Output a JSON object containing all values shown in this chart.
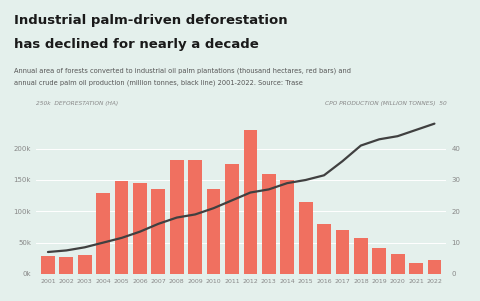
{
  "title_line1": "Industrial palm-driven deforestation",
  "title_line2": "has declined for nearly a decade",
  "subtitle_line1": "Annual area of forests converted to industrial oil palm plantations (thousand hectares, red bars) and",
  "subtitle_line2": "annual crude palm oil production (million tonnes, black line) 2001-2022. Source: Trase",
  "years": [
    "2001",
    "2002",
    "2003",
    "2004",
    "2005",
    "2006",
    "2007",
    "2008",
    "2009",
    "2010",
    "2011",
    "2012",
    "2013",
    "2014",
    "2015",
    "2016",
    "2017",
    "2018",
    "2019",
    "2020",
    "2021",
    "2022"
  ],
  "deforestation": [
    28,
    27,
    30,
    130,
    148,
    145,
    135,
    182,
    182,
    135,
    175,
    230,
    160,
    150,
    115,
    80,
    70,
    57,
    42,
    32,
    17,
    22
  ],
  "cpo_production": [
    7.0,
    7.5,
    8.5,
    10.0,
    11.5,
    13.5,
    16.0,
    18.0,
    19.0,
    21.0,
    23.5,
    26.0,
    27.0,
    29.0,
    30.0,
    31.5,
    36.0,
    41.0,
    43.0,
    44.0,
    46.0,
    48.0
  ],
  "bar_color": "#f07060",
  "line_color": "#404040",
  "bg_color": "#e4f0ec",
  "header_bg": "#e4f0ec",
  "left_ylabel": "250k  DEFORESTATION (HA)",
  "right_ylabel": "CPO PRODUCTION (MILLION TONNES)  50",
  "ylim_left": [
    0,
    250
  ],
  "ylim_right": [
    0,
    50
  ],
  "yticks_left": [
    0,
    50,
    100,
    150,
    200
  ],
  "ytick_labels_left": [
    "0k",
    "50k",
    "100k",
    "150k",
    "200k"
  ],
  "yticks_right": [
    0,
    10,
    20,
    30,
    40
  ],
  "ytick_labels_right": [
    "0",
    "10",
    "20",
    "30",
    "40"
  ],
  "top_accent_color": "#e05040",
  "title_color": "#1a1a1a",
  "subtitle_color": "#555555",
  "axis_label_color": "#888888",
  "tick_color": "#888888",
  "grid_color": "#ffffff"
}
